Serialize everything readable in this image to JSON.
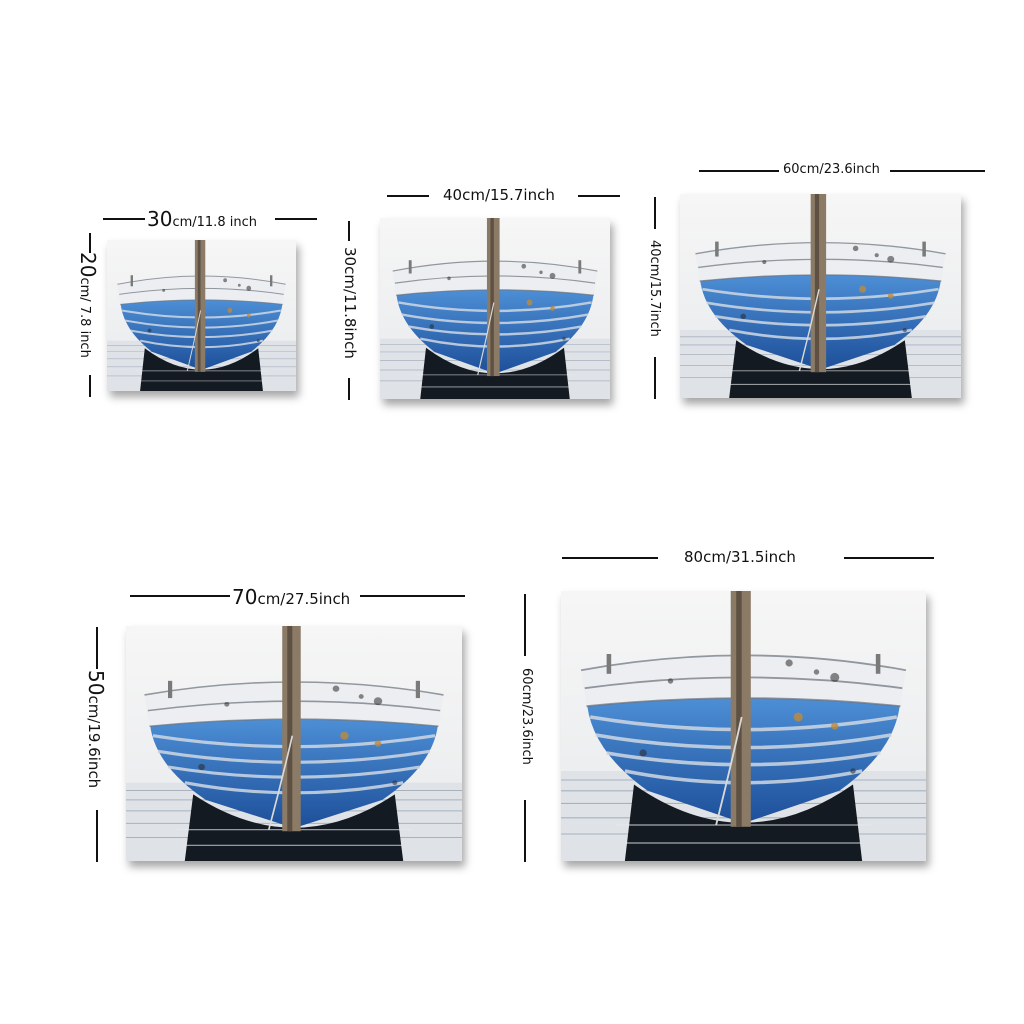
{
  "colors": {
    "hull_blue": "#2f6fc0",
    "hull_white": "#e6e8ec",
    "water_dark": "#141a22",
    "mast": "#8b7b66"
  },
  "prints": [
    {
      "name": "print-30x20",
      "width_value": "30",
      "width_unit": "cm/11.8 inch",
      "height_value": "20",
      "height_unit": "cm/ 7.8 inch"
    },
    {
      "name": "print-40x30",
      "width_label": "40cm/15.7inch",
      "height_label": "30cm/11.8inch"
    },
    {
      "name": "print-60x40",
      "width_label": "60cm/23.6inch",
      "height_label": "40cm/15.7inch"
    },
    {
      "name": "print-70x50",
      "width_value": "70",
      "width_unit": "cm/27.5inch",
      "height_value": "50",
      "height_unit": "cm/19.6inch"
    },
    {
      "name": "print-80x60",
      "width_label": "80cm/31.5inch",
      "height_label": "60cm/23.6inch"
    }
  ]
}
